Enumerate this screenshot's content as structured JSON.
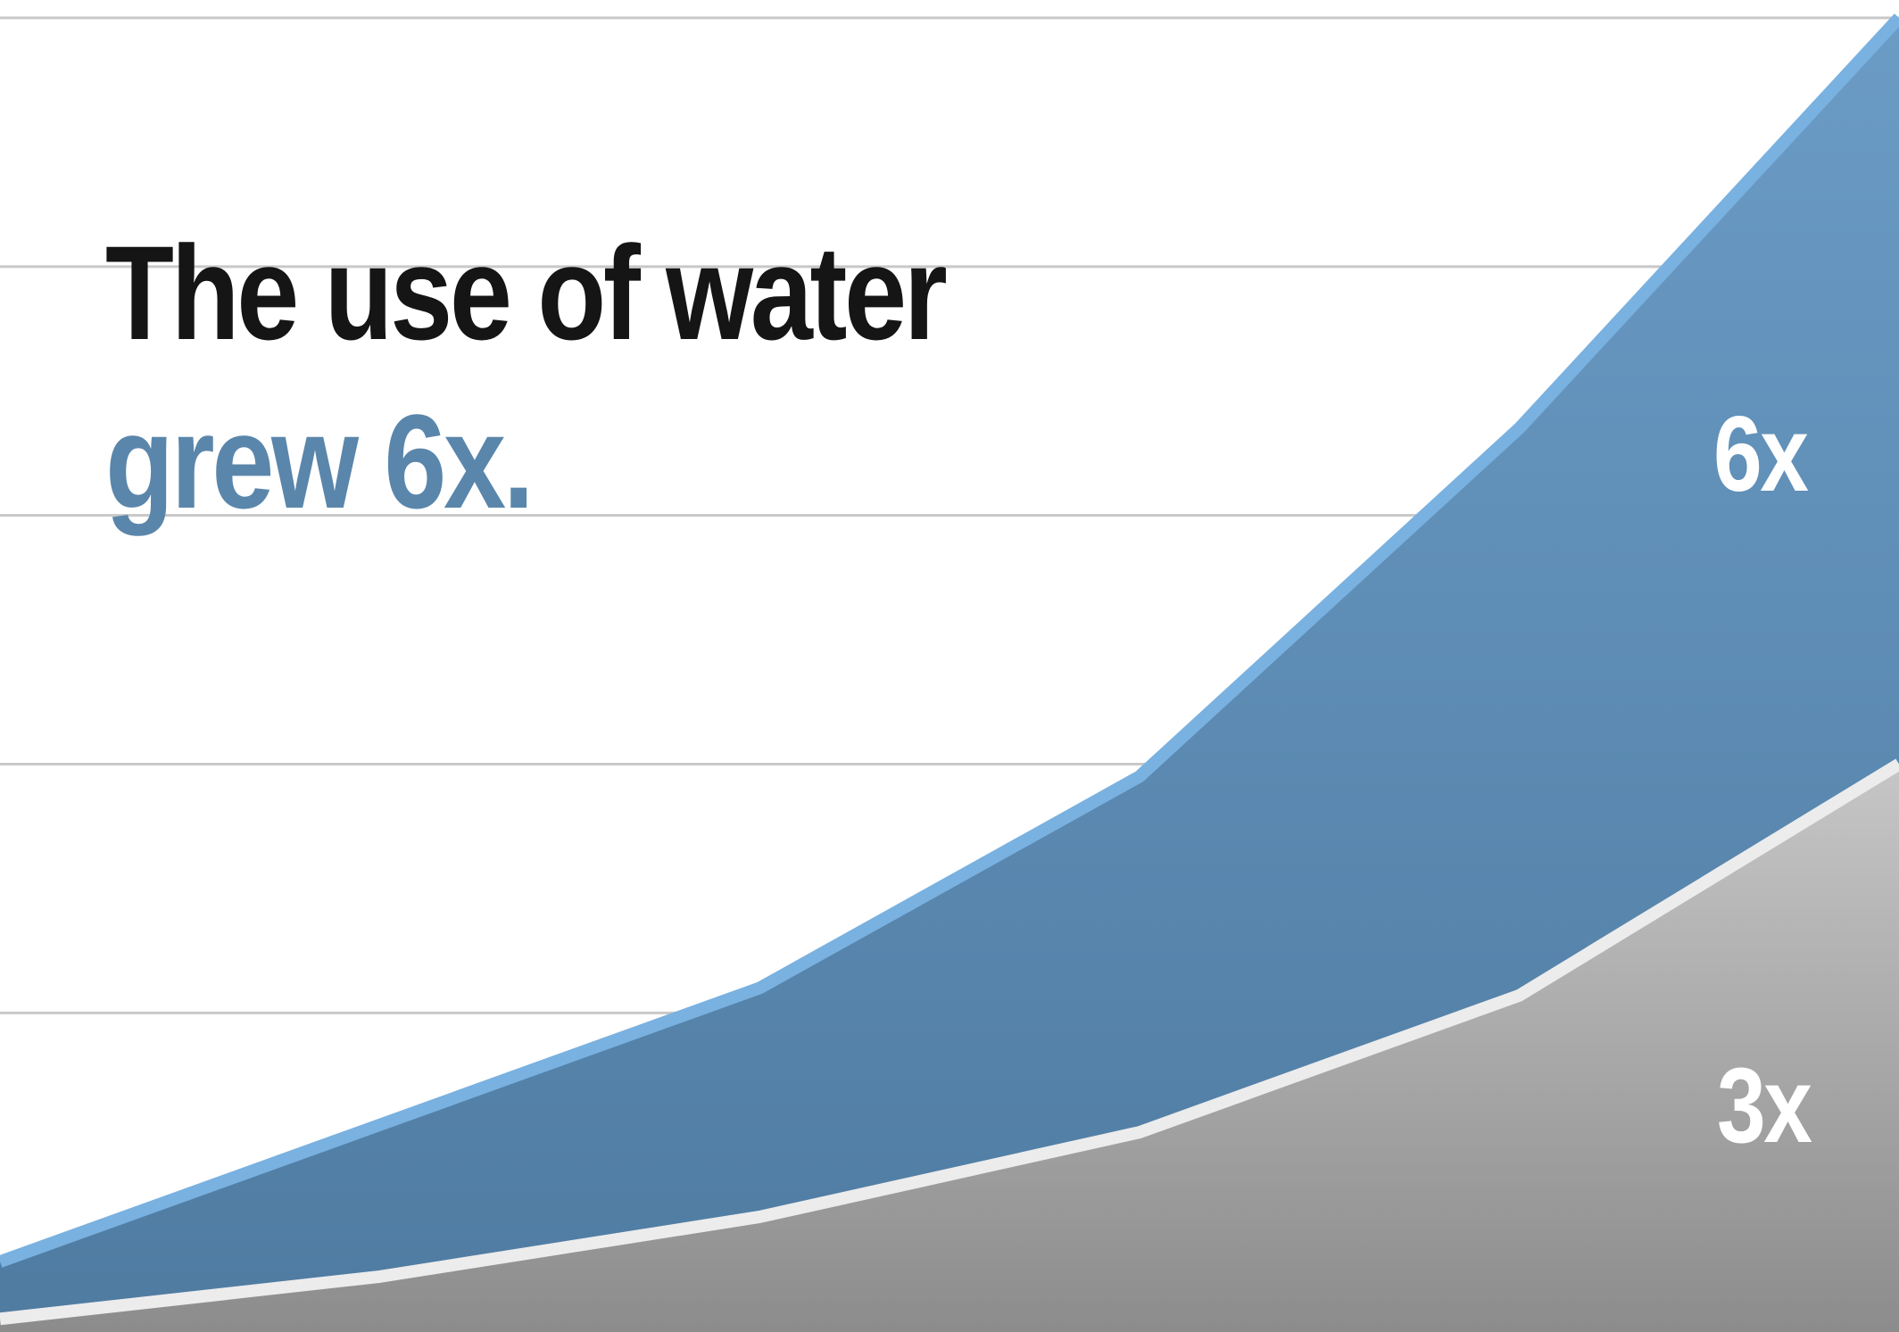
{
  "title": {
    "line1": "The use of water",
    "line2": "grew 6x."
  },
  "colors": {
    "background": "#ffffff",
    "gridline": "#c8c8c8",
    "title_dark": "#151515",
    "title_accent": "#5a86ab",
    "water_top": "#6b9cc6",
    "water_bottom": "#4f7ba1",
    "water_edge": "#79b1e0",
    "population_top": "#c6c6c6",
    "population_bottom": "#8c8c8c",
    "population_edge": "#ececec",
    "area_label": "#ffffff"
  },
  "chart_data": {
    "type": "area",
    "title": "The use of water grew 6x.",
    "xlabel": "",
    "ylabel": "",
    "x": [
      0,
      1,
      2,
      3,
      4,
      5
    ],
    "ylim": [
      0,
      6
    ],
    "grid": true,
    "gridlines": [
      1,
      2,
      3,
      4,
      5,
      6
    ],
    "series": [
      {
        "name": "",
        "values": [
          1.0,
          1.55,
          2.1,
          2.95,
          4.35,
          6.0
        ],
        "end_label": "6x"
      },
      {
        "name": "",
        "values": [
          0.77,
          0.94,
          1.18,
          1.52,
          2.07,
          3.0
        ],
        "end_label": "3x"
      }
    ]
  }
}
